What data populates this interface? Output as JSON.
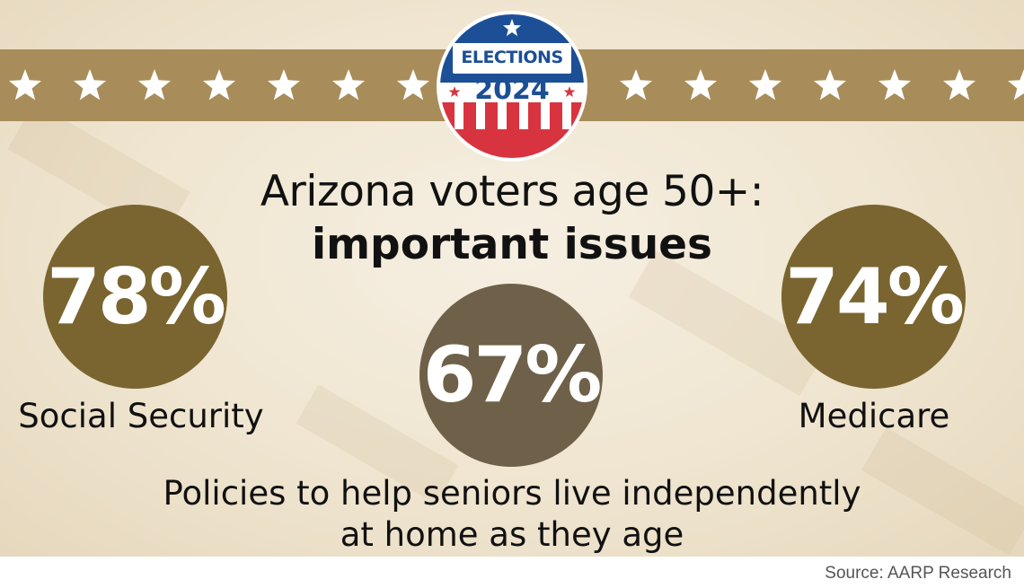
{
  "badge": {
    "top_text": "ELECTIONS",
    "year": "2024"
  },
  "title": {
    "line1": "Arizona voters age 50+:",
    "line2": "important issues"
  },
  "issues": [
    {
      "percent": "78%",
      "label": "Social Security"
    },
    {
      "percent": "67%",
      "label_line1": "Policies to help seniors live independently",
      "label_line2": "at home as they age"
    },
    {
      "percent": "74%",
      "label": "Medicare"
    }
  ],
  "source": "Source: AARP Research",
  "colors": {
    "band": "#a88d5a",
    "circle_olive": "#7a6530",
    "circle_gray": "#6f6149",
    "badge_red": "#d8343f",
    "badge_blue": "#1c4f96"
  }
}
